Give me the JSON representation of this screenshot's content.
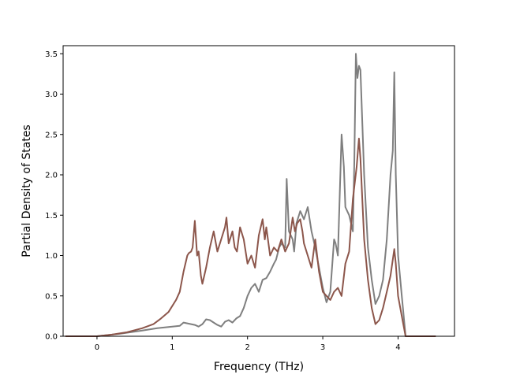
{
  "chart_data": {
    "type": "line",
    "title": "",
    "xlabel": "Frequency (THz)",
    "ylabel": "Partial Density of States",
    "xlim": [
      -0.45,
      4.75
    ],
    "ylim": [
      0.0,
      3.6
    ],
    "xticks": [
      0,
      1,
      2,
      3,
      4
    ],
    "xtick_labels": [
      "0",
      "1",
      "2",
      "3",
      "4"
    ],
    "yticks": [
      0.0,
      0.5,
      1.0,
      1.5,
      2.0,
      2.5,
      3.0,
      3.5
    ],
    "ytick_labels": [
      "0.0",
      "0.5",
      "1.0",
      "1.5",
      "2.0",
      "2.5",
      "3.0",
      "3.5"
    ],
    "grid": false,
    "series": [
      {
        "color": "#7f7f7f",
        "x": [
          -0.42,
          0.0,
          0.3,
          0.6,
          0.8,
          0.9,
          1.0,
          1.1,
          1.15,
          1.2,
          1.3,
          1.35,
          1.4,
          1.45,
          1.5,
          1.55,
          1.6,
          1.65,
          1.7,
          1.75,
          1.8,
          1.85,
          1.9,
          1.95,
          2.0,
          2.05,
          2.1,
          2.15,
          2.2,
          2.25,
          2.3,
          2.35,
          2.38,
          2.42,
          2.45,
          2.5,
          2.52,
          2.55,
          2.6,
          2.62,
          2.65,
          2.7,
          2.75,
          2.8,
          2.85,
          2.9,
          2.92,
          2.95,
          3.0,
          3.05,
          3.1,
          3.15,
          3.17,
          3.2,
          3.25,
          3.28,
          3.3,
          3.35,
          3.4,
          3.42,
          3.44,
          3.46,
          3.48,
          3.5,
          3.55,
          3.6,
          3.65,
          3.7,
          3.75,
          3.8,
          3.85,
          3.9,
          3.93,
          3.95,
          3.97,
          4.0,
          4.05,
          4.08,
          4.1,
          4.5
        ],
        "y": [
          0.0,
          0.0,
          0.03,
          0.07,
          0.1,
          0.11,
          0.12,
          0.13,
          0.17,
          0.16,
          0.14,
          0.12,
          0.15,
          0.21,
          0.2,
          0.17,
          0.14,
          0.12,
          0.18,
          0.2,
          0.17,
          0.22,
          0.25,
          0.35,
          0.5,
          0.6,
          0.65,
          0.55,
          0.7,
          0.72,
          0.8,
          0.9,
          0.95,
          1.1,
          1.15,
          1.1,
          1.95,
          1.3,
          1.2,
          1.05,
          1.4,
          1.55,
          1.45,
          1.6,
          1.3,
          1.1,
          1.0,
          0.85,
          0.6,
          0.42,
          0.55,
          1.2,
          1.15,
          1.0,
          2.5,
          2.1,
          1.6,
          1.5,
          1.3,
          2.2,
          3.5,
          3.2,
          3.35,
          3.3,
          2.0,
          1.1,
          0.7,
          0.4,
          0.5,
          0.7,
          1.2,
          2.0,
          2.3,
          3.27,
          2.0,
          1.0,
          0.5,
          0.2,
          0.0,
          0.0
        ]
      },
      {
        "color": "#8c564b",
        "x": [
          -0.42,
          0.0,
          0.2,
          0.4,
          0.6,
          0.75,
          0.85,
          0.95,
          1.05,
          1.1,
          1.15,
          1.2,
          1.22,
          1.25,
          1.27,
          1.3,
          1.33,
          1.35,
          1.38,
          1.4,
          1.45,
          1.5,
          1.55,
          1.6,
          1.65,
          1.7,
          1.72,
          1.75,
          1.8,
          1.83,
          1.86,
          1.9,
          1.95,
          2.0,
          2.05,
          2.1,
          2.15,
          2.2,
          2.23,
          2.25,
          2.3,
          2.35,
          2.4,
          2.45,
          2.5,
          2.55,
          2.6,
          2.63,
          2.66,
          2.7,
          2.73,
          2.75,
          2.8,
          2.85,
          2.9,
          2.95,
          3.0,
          3.05,
          3.1,
          3.15,
          3.2,
          3.25,
          3.3,
          3.35,
          3.4,
          3.45,
          3.48,
          3.5,
          3.55,
          3.6,
          3.65,
          3.7,
          3.75,
          3.8,
          3.85,
          3.9,
          3.95,
          3.97,
          4.0,
          4.05,
          4.1,
          4.5
        ],
        "y": [
          0.0,
          0.0,
          0.02,
          0.05,
          0.1,
          0.15,
          0.22,
          0.3,
          0.45,
          0.55,
          0.8,
          1.0,
          1.03,
          1.05,
          1.1,
          1.43,
          1.0,
          1.05,
          0.75,
          0.65,
          0.85,
          1.1,
          1.3,
          1.05,
          1.2,
          1.35,
          1.47,
          1.15,
          1.3,
          1.1,
          1.05,
          1.35,
          1.2,
          0.9,
          1.0,
          0.85,
          1.25,
          1.45,
          1.2,
          1.35,
          1.0,
          1.1,
          1.05,
          1.2,
          1.05,
          1.15,
          1.47,
          1.3,
          1.4,
          1.45,
          1.3,
          1.15,
          1.0,
          0.85,
          1.2,
          0.8,
          0.55,
          0.5,
          0.45,
          0.55,
          0.6,
          0.5,
          0.9,
          1.05,
          1.7,
          2.1,
          2.45,
          2.2,
          1.2,
          0.7,
          0.35,
          0.15,
          0.2,
          0.35,
          0.55,
          0.75,
          1.08,
          0.9,
          0.5,
          0.25,
          0.0,
          0.0
        ]
      }
    ]
  }
}
